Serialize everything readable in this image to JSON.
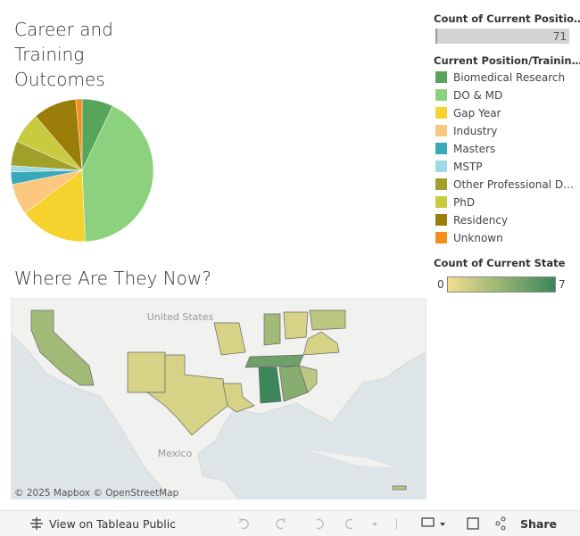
{
  "chart_data": {
    "type": "pie",
    "title": "Career and Training Outcomes",
    "legend_title": "Current Position/Trainin…",
    "categories": [
      "Biomedical Research",
      "DO & MD",
      "Gap Year",
      "Industry",
      "Masters",
      "MSTP",
      "Other Professional D…",
      "PhD",
      "Residency",
      "Unknown"
    ],
    "values": [
      5,
      30,
      11,
      5,
      2,
      1,
      4,
      5,
      7,
      1
    ],
    "colors": [
      "#57a55a",
      "#8cd17d",
      "#f5d22e",
      "#fcc77e",
      "#39a8b8",
      "#9edae5",
      "#a0a02a",
      "#c8cb40",
      "#9b7d0a",
      "#f28e1c"
    ]
  },
  "count_legend": {
    "title": "Count of Current Positio…",
    "value": 71
  },
  "map": {
    "title": "Where Are They Now?",
    "legend_title": "Count of Current State",
    "colorlim": [
      0,
      7
    ],
    "colors": [
      "#f0e08e",
      "#3b875a"
    ],
    "values": [
      3,
      1,
      1,
      1,
      1,
      3,
      1,
      2,
      1,
      5,
      7,
      4,
      2,
      2
    ],
    "labels": [
      "United States",
      "Mexico"
    ],
    "attribution": "© 2025 Mapbox © OpenStreetMap"
  },
  "toolbar": {
    "view": "View on Tableau Public",
    "share": "Share"
  }
}
